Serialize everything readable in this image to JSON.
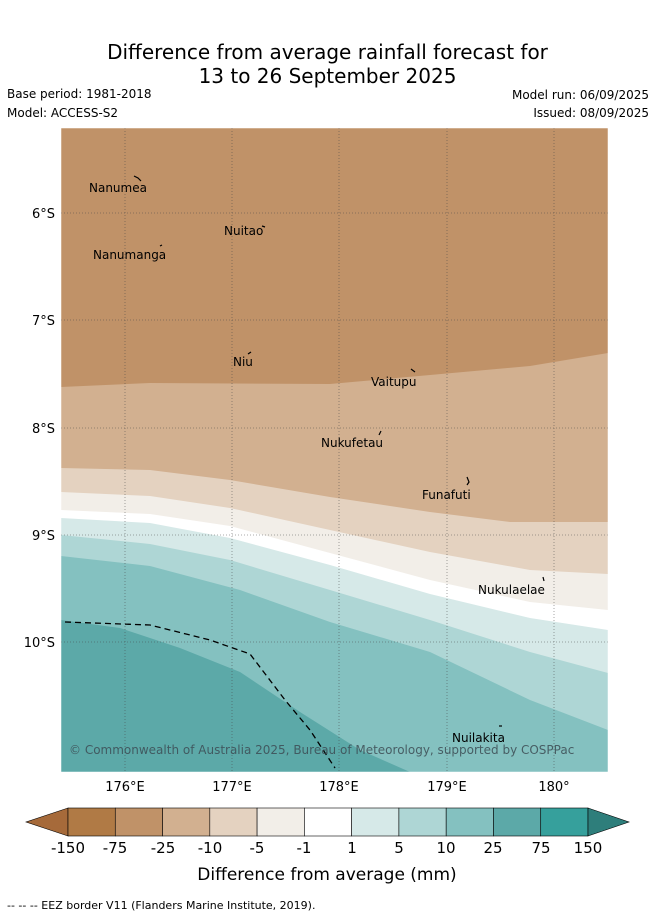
{
  "title": {
    "line1": "Difference from average rainfall forecast for",
    "line2": "13 to 26 September 2025"
  },
  "meta": {
    "base_period": "Base period: 1981-2018",
    "model": "Model: ACCESS-S2",
    "model_run": "Model run: 06/09/2025",
    "issued": "Issued: 08/09/2025"
  },
  "map": {
    "x_ticks": [
      "176°E",
      "177°E",
      "178°E",
      "179°E",
      "180°"
    ],
    "y_ticks": [
      "6°S",
      "7°S",
      "8°S",
      "9°S",
      "10°S"
    ],
    "places": [
      {
        "name": "Nanumea"
      },
      {
        "name": "Nuitao"
      },
      {
        "name": "Nanumanga"
      },
      {
        "name": "Niu"
      },
      {
        "name": "Vaitupu"
      },
      {
        "name": "Nukufetau"
      },
      {
        "name": "Funafuti"
      },
      {
        "name": "Nukulaelae"
      },
      {
        "name": "Nuilakita"
      }
    ],
    "copyright": "© Commonwealth of Australia 2025, Bureau of Meteorology, supported by COSPPac"
  },
  "colorbar": {
    "ticks": [
      "-150",
      "-75",
      "-25",
      "-10",
      "-5",
      "-1",
      "1",
      "5",
      "10",
      "25",
      "75",
      "150"
    ],
    "label": "Difference from average (mm)",
    "colors": [
      "#a66a3a",
      "#b07a45",
      "#c09268",
      "#d2b090",
      "#e4d2c0",
      "#f2eee8",
      "#ffffff",
      "#d6e9e8",
      "#aed6d5",
      "#84c1c0",
      "#5ca9a8",
      "#36a09c",
      "#2e7e7b"
    ]
  },
  "footer": {
    "eez_note": "-- -- -- EEZ border V11 (Flanders Marine Institute, 2019)."
  }
}
